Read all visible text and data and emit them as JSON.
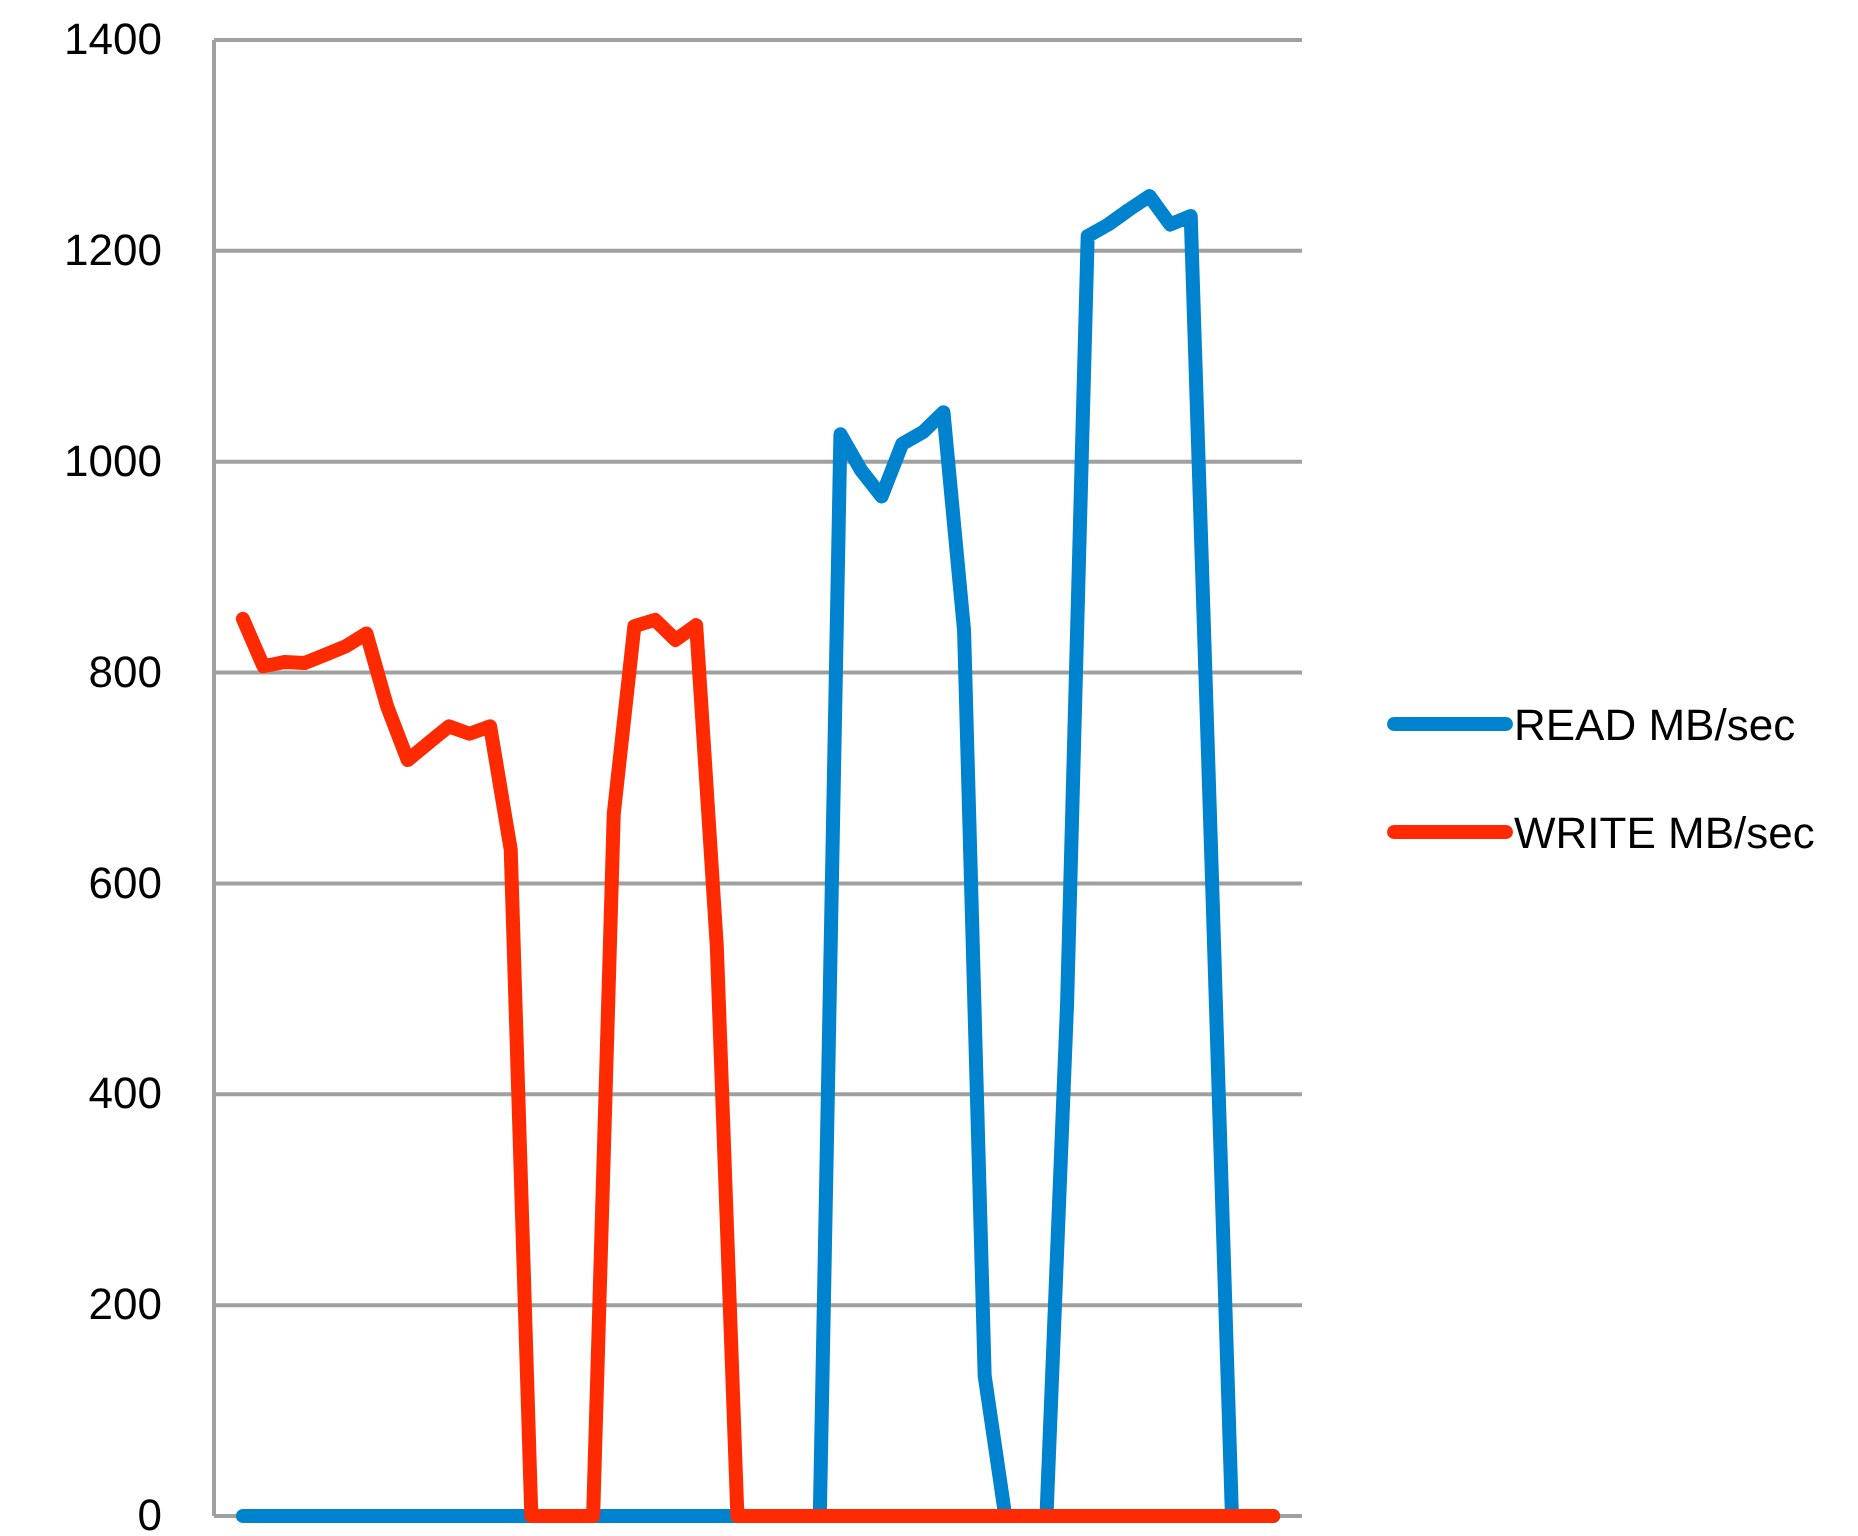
{
  "chart_data": {
    "type": "line",
    "categories": [
      null,
      null,
      null,
      null,
      null,
      null,
      null,
      null,
      null,
      null,
      null,
      null,
      null,
      null,
      null,
      null,
      null,
      null,
      null,
      null,
      null,
      null,
      null,
      null,
      null,
      null,
      null,
      null,
      null,
      null,
      null,
      null,
      null,
      null,
      null,
      null,
      null,
      null,
      null,
      null,
      null,
      null,
      null,
      null,
      null,
      null,
      null,
      null,
      null,
      null,
      null
    ],
    "series": [
      {
        "name": "READ MB/sec",
        "color": "#0083cf",
        "values": [
          0,
          0,
          0,
          0,
          0,
          0,
          0,
          0,
          0,
          0,
          0,
          0,
          0,
          0,
          0,
          0,
          0,
          0,
          0,
          0,
          0,
          0,
          0,
          0,
          0,
          0,
          0,
          0,
          0,
          1026,
          992,
          967,
          1017,
          1028,
          1047,
          840,
          133,
          0,
          0,
          0,
          486,
          1214,
          1225,
          1239,
          1252,
          1225,
          1233,
          624,
          0,
          0,
          0
        ]
      },
      {
        "name": "WRITE MB/sec",
        "color": "#ff2a00",
        "values": [
          851,
          806,
          810,
          809,
          817,
          825,
          837,
          768,
          717,
          733,
          749,
          742,
          749,
          632,
          0,
          0,
          0,
          0,
          666,
          844,
          850,
          831,
          845,
          541,
          0,
          0,
          0,
          0,
          0,
          0,
          0,
          0,
          0,
          0,
          0,
          0,
          0,
          0,
          0,
          0,
          0,
          0,
          0,
          0,
          0,
          0,
          0,
          0,
          0,
          0,
          0
        ]
      }
    ],
    "ylim": [
      0,
      1400
    ],
    "yticks": [
      0,
      200,
      400,
      600,
      800,
      1000,
      1200,
      1400
    ],
    "grid": "y",
    "legend": "right",
    "marker": "none",
    "line_style": "solid"
  }
}
